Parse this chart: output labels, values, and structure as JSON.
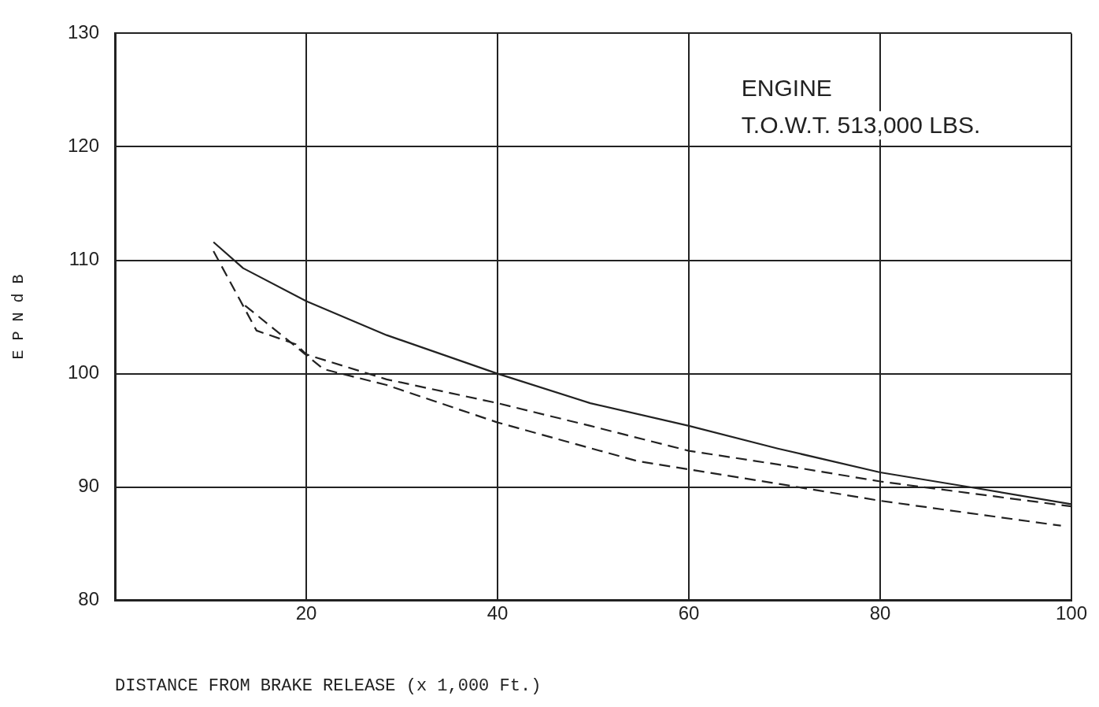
{
  "chart_data": {
    "type": "line",
    "xlabel": "DISTANCE FROM BRAKE RELEASE (x 1,000 Ft.)",
    "ylabel": "E P N d B",
    "annotations": [
      "ENGINE",
      "T.O.W.T. 513,000 LBS."
    ],
    "xlim": [
      0,
      100
    ],
    "xticks": [
      20,
      40,
      60,
      80,
      100
    ],
    "ylim": [
      80,
      130
    ],
    "yticks": [
      80,
      90,
      100,
      110,
      120,
      130
    ],
    "grid": true,
    "legend": false,
    "marker": "none",
    "series": [
      {
        "color": "#222222",
        "line_style": "solid",
        "x": [
          10.3,
          13.4,
          20,
          28.4,
          40,
          49.7,
          60,
          69.3,
          80,
          89.4,
          100
        ],
        "values": [
          111.6,
          109.3,
          106.4,
          103.4,
          100,
          97.4,
          95.4,
          93.4,
          91.3,
          90,
          88.5
        ]
      },
      {
        "color": "#222222",
        "line_style": "dashed",
        "x": [
          10.3,
          14.8,
          18.9,
          20,
          28.4,
          40,
          49.7,
          60,
          69.3,
          80,
          100
        ],
        "values": [
          110.8,
          103.8,
          102.6,
          101.7,
          99.5,
          97.4,
          95.4,
          93.2,
          92,
          90.5,
          88.3
        ]
      },
      {
        "color": "#222222",
        "line_style": "dashed",
        "x": [
          13.6,
          18.9,
          21.8,
          28.4,
          40,
          54.6,
          69.3,
          80,
          89.4,
          98.9
        ],
        "values": [
          106,
          102.4,
          100.4,
          99,
          95.7,
          92.3,
          90.3,
          88.8,
          87.7,
          86.6
        ]
      }
    ]
  }
}
